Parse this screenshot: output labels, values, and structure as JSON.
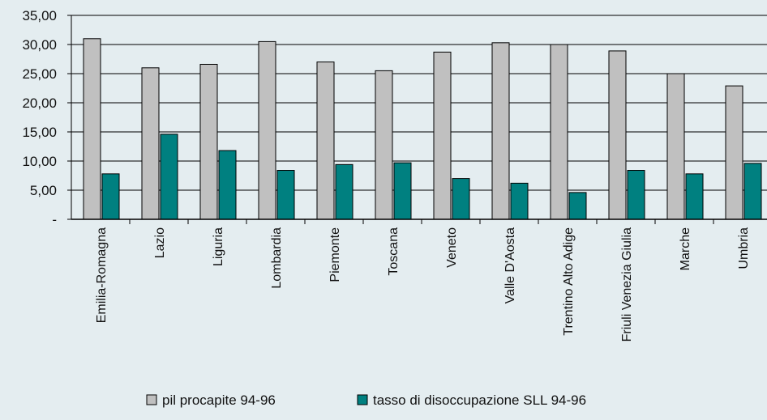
{
  "chart_data": {
    "type": "bar",
    "categories": [
      "Emilia-Romagna",
      "Lazio",
      "Liguria",
      "Lombardia",
      "Piemonte",
      "Toscana",
      "Veneto",
      "Valle D'Aosta",
      "Trentino Alto Adige",
      "Friuli Venezia Giulia",
      "Marche",
      "Umbria"
    ],
    "series": [
      {
        "name": "pil procapite 94-96",
        "color": "#c0c0c0",
        "values": [
          31.0,
          26.0,
          26.6,
          30.5,
          27.0,
          25.5,
          28.7,
          30.3,
          30.0,
          28.9,
          25.0,
          22.9
        ]
      },
      {
        "name": "tasso di disoccupazione SLL 94-96",
        "color": "#008080",
        "values": [
          7.8,
          14.6,
          11.8,
          8.4,
          9.4,
          9.7,
          7.0,
          6.2,
          4.6,
          8.4,
          7.8,
          9.6
        ]
      }
    ],
    "y_ticks": [
      "-",
      "5,00",
      "10,00",
      "15,00",
      "20,00",
      "25,00",
      "30,00",
      "35,00"
    ],
    "ylim": [
      0,
      35
    ],
    "title": "",
    "xlabel": "",
    "ylabel": "",
    "grid": true,
    "legend_position": "bottom"
  }
}
